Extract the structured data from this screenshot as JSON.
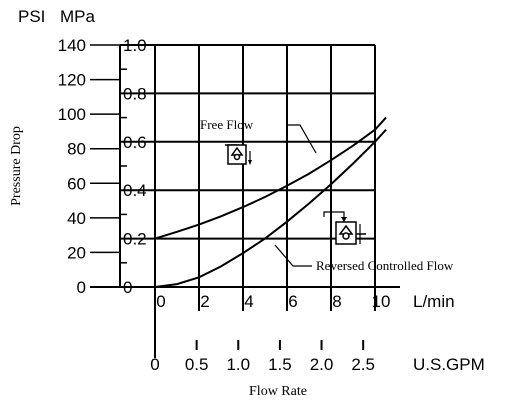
{
  "chart_data": {
    "type": "line",
    "xlabel": "Flow Rate",
    "ylabel": "Pressure Drop",
    "x_unit": "L/min",
    "x_ticks": [
      "0",
      "2",
      "4",
      "6",
      "8",
      "10"
    ],
    "x2_unit": "U.S.GPM",
    "x2_ticks": [
      "0",
      "0.5",
      "1.0",
      "1.5",
      "2.0",
      "2.5"
    ],
    "y_unit": "PSI",
    "y_ticks": [
      "0",
      "20",
      "40",
      "60",
      "80",
      "100",
      "120",
      "140"
    ],
    "y2_unit": "MPa",
    "y2_ticks": [
      "0",
      "0.2",
      "0.4",
      "0.6",
      "0.8",
      "1.0"
    ],
    "xlim": [
      0,
      10
    ],
    "ylim_mpa": [
      0,
      1.0
    ],
    "ylim_psi": [
      0,
      140
    ],
    "grid": true,
    "series": [
      {
        "name": "Free Flow",
        "x": [
          0,
          1,
          2,
          3,
          4,
          5,
          6,
          7,
          8,
          9,
          10,
          10.5
        ],
        "y": [
          0.2,
          0.228,
          0.258,
          0.292,
          0.33,
          0.372,
          0.418,
          0.468,
          0.524,
          0.584,
          0.65,
          0.7
        ]
      },
      {
        "name": "Reversed Controlled Flow",
        "x": [
          0,
          1,
          2,
          3,
          4,
          5,
          6,
          7,
          8,
          9,
          10,
          10.5
        ],
        "y": [
          0.0,
          0.012,
          0.04,
          0.085,
          0.14,
          0.2,
          0.27,
          0.345,
          0.425,
          0.51,
          0.6,
          0.65
        ]
      }
    ]
  }
}
